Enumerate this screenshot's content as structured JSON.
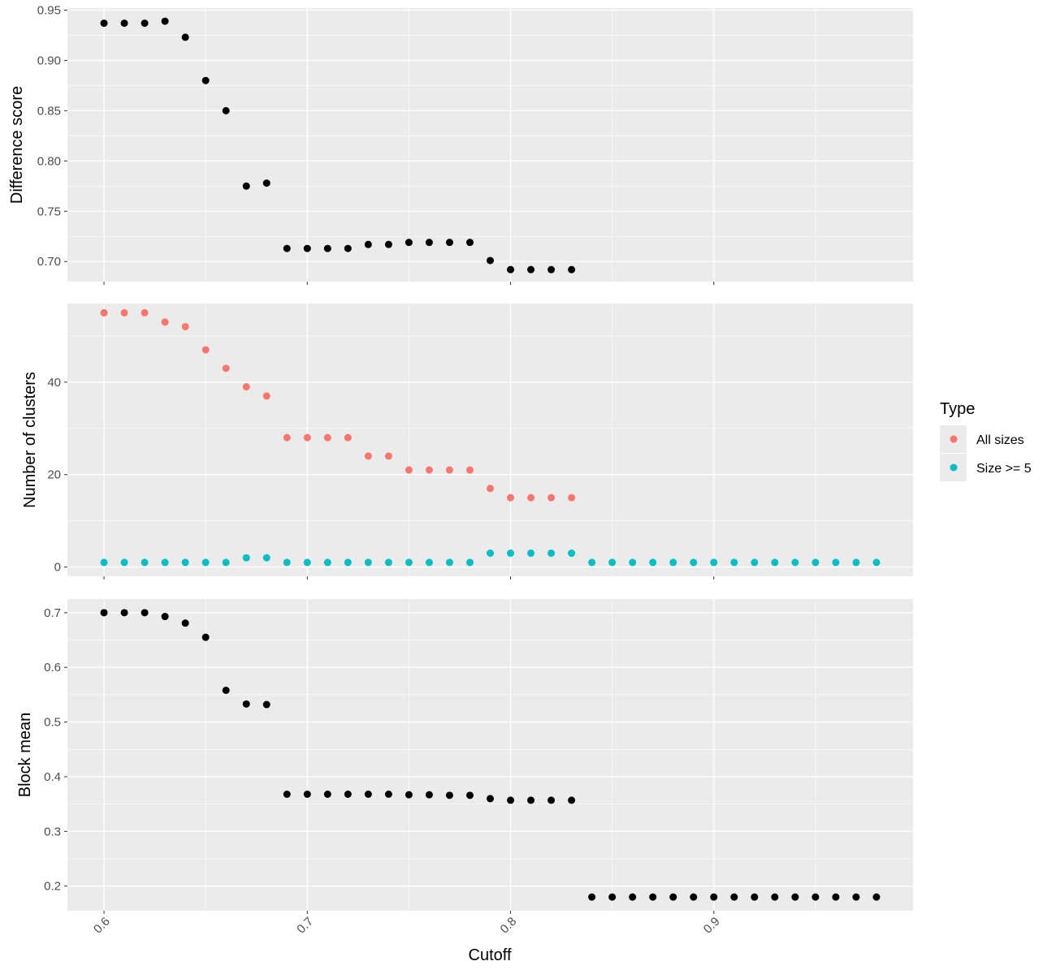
{
  "chart_data": {
    "type": "scatter",
    "xlabel": "Cutoff",
    "x_ticks": [
      "0.6",
      "0.7",
      "0.8",
      "0.9"
    ],
    "xlim": [
      0.582,
      0.998
    ],
    "legend": {
      "title": "Type",
      "placement": "right",
      "entries": [
        {
          "label": "All sizes",
          "color": "#F8766D"
        },
        {
          "label": "Size >= 5",
          "color": "#00BFC4"
        }
      ]
    },
    "panels": [
      {
        "ylabel": "Difference score",
        "ylim": [
          0.68,
          0.952
        ],
        "y_ticks": [
          "0.70",
          "0.75",
          "0.80",
          "0.85",
          "0.90",
          "0.95"
        ],
        "series": [
          {
            "color": "#000000",
            "x": [
              0.6,
              0.61,
              0.62,
              0.63,
              0.64,
              0.65,
              0.66,
              0.67,
              0.68,
              0.69,
              0.7,
              0.71,
              0.72,
              0.73,
              0.74,
              0.75,
              0.76,
              0.77,
              0.78,
              0.79,
              0.8,
              0.81,
              0.82,
              0.83
            ],
            "y": [
              0.937,
              0.937,
              0.937,
              0.939,
              0.923,
              0.88,
              0.85,
              0.775,
              0.778,
              0.713,
              0.713,
              0.713,
              0.713,
              0.717,
              0.717,
              0.719,
              0.719,
              0.719,
              0.719,
              0.701,
              0.692,
              0.692,
              0.692,
              0.692
            ]
          }
        ]
      },
      {
        "ylabel": "Number of clusters",
        "ylim": [
          -2,
          57
        ],
        "y_ticks": [
          "0",
          "20",
          "40"
        ],
        "series": [
          {
            "name": "All sizes",
            "color": "#F8766D",
            "x": [
              0.6,
              0.61,
              0.62,
              0.63,
              0.64,
              0.65,
              0.66,
              0.67,
              0.68,
              0.69,
              0.7,
              0.71,
              0.72,
              0.73,
              0.74,
              0.75,
              0.76,
              0.77,
              0.78,
              0.79,
              0.8,
              0.81,
              0.82,
              0.83
            ],
            "y": [
              55,
              55,
              55,
              53,
              52,
              47,
              43,
              39,
              37,
              28,
              28,
              28,
              28,
              24,
              24,
              21,
              21,
              21,
              21,
              17,
              15,
              15,
              15,
              15
            ]
          },
          {
            "name": "Size >= 5",
            "color": "#00BFC4",
            "x": [
              0.6,
              0.61,
              0.62,
              0.63,
              0.64,
              0.65,
              0.66,
              0.67,
              0.68,
              0.69,
              0.7,
              0.71,
              0.72,
              0.73,
              0.74,
              0.75,
              0.76,
              0.77,
              0.78,
              0.79,
              0.8,
              0.81,
              0.82,
              0.83,
              0.84,
              0.85,
              0.86,
              0.87,
              0.88,
              0.89,
              0.9,
              0.91,
              0.92,
              0.93,
              0.94,
              0.95,
              0.96,
              0.97,
              0.98
            ],
            "y": [
              1,
              1,
              1,
              1,
              1,
              1,
              1,
              2,
              2,
              1,
              1,
              1,
              1,
              1,
              1,
              1,
              1,
              1,
              1,
              3,
              3,
              3,
              3,
              3,
              1,
              1,
              1,
              1,
              1,
              1,
              1,
              1,
              1,
              1,
              1,
              1,
              1,
              1,
              1
            ]
          }
        ]
      },
      {
        "ylabel": "Block mean",
        "ylim": [
          0.155,
          0.725
        ],
        "y_ticks": [
          "0.2",
          "0.3",
          "0.4",
          "0.5",
          "0.6",
          "0.7"
        ],
        "series": [
          {
            "color": "#000000",
            "x": [
              0.6,
              0.61,
              0.62,
              0.63,
              0.64,
              0.65,
              0.66,
              0.67,
              0.68,
              0.69,
              0.7,
              0.71,
              0.72,
              0.73,
              0.74,
              0.75,
              0.76,
              0.77,
              0.78,
              0.79,
              0.8,
              0.81,
              0.82,
              0.83,
              0.84,
              0.85,
              0.86,
              0.87,
              0.88,
              0.89,
              0.9,
              0.91,
              0.92,
              0.93,
              0.94,
              0.95,
              0.96,
              0.97,
              0.98
            ],
            "y": [
              0.7,
              0.7,
              0.7,
              0.693,
              0.681,
              0.655,
              0.558,
              0.533,
              0.532,
              0.368,
              0.368,
              0.368,
              0.368,
              0.368,
              0.368,
              0.367,
              0.367,
              0.366,
              0.366,
              0.36,
              0.357,
              0.357,
              0.357,
              0.357,
              0.18,
              0.18,
              0.18,
              0.18,
              0.18,
              0.18,
              0.18,
              0.18,
              0.18,
              0.18,
              0.18,
              0.18,
              0.18,
              0.18,
              0.18
            ]
          }
        ]
      }
    ]
  }
}
